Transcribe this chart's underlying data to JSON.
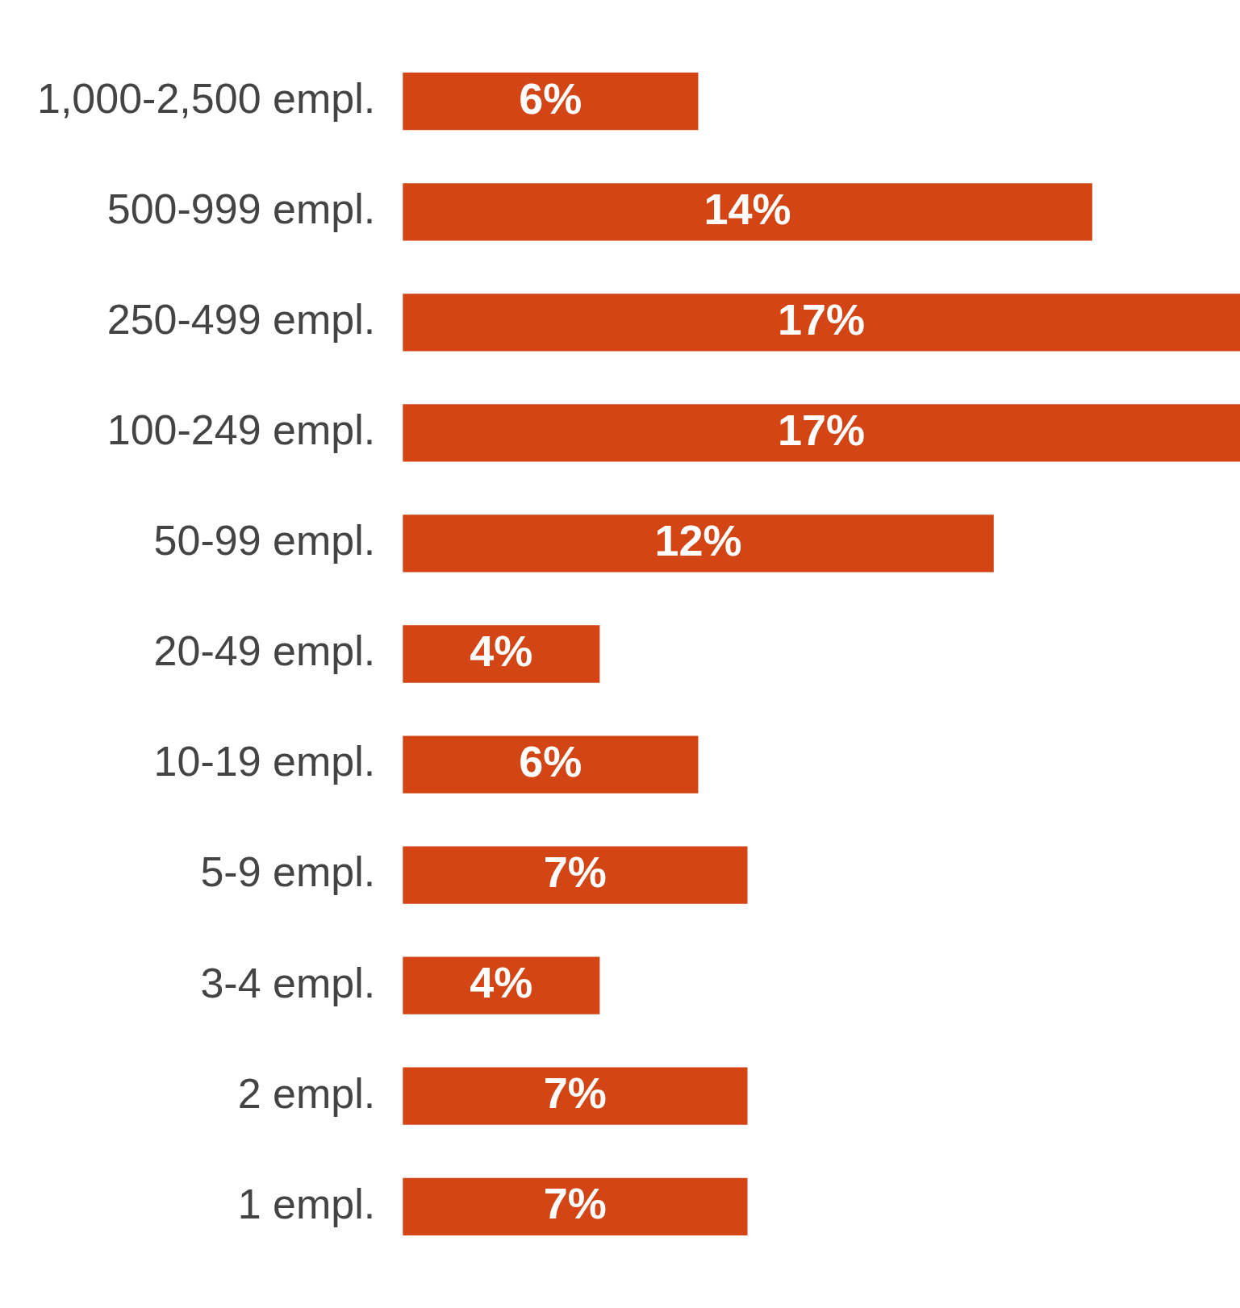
{
  "chart_data": {
    "type": "bar",
    "orientation": "horizontal",
    "categories": [
      "1,000-2,500 empl.",
      "500-999 empl.",
      "250-499 empl.",
      "100-249 empl.",
      "50-99 empl.",
      "20-49 empl.",
      "10-19 empl.",
      "5-9 empl.",
      "3-4 empl.",
      "2 empl.",
      "1 empl."
    ],
    "values": [
      6,
      14,
      17,
      17,
      12,
      4,
      6,
      7,
      4,
      7,
      7
    ],
    "value_labels": [
      "6%",
      "14%",
      "17%",
      "17%",
      "12%",
      "4%",
      "6%",
      "7%",
      "4%",
      "7%",
      "7%"
    ],
    "color": "#d34515"
  }
}
